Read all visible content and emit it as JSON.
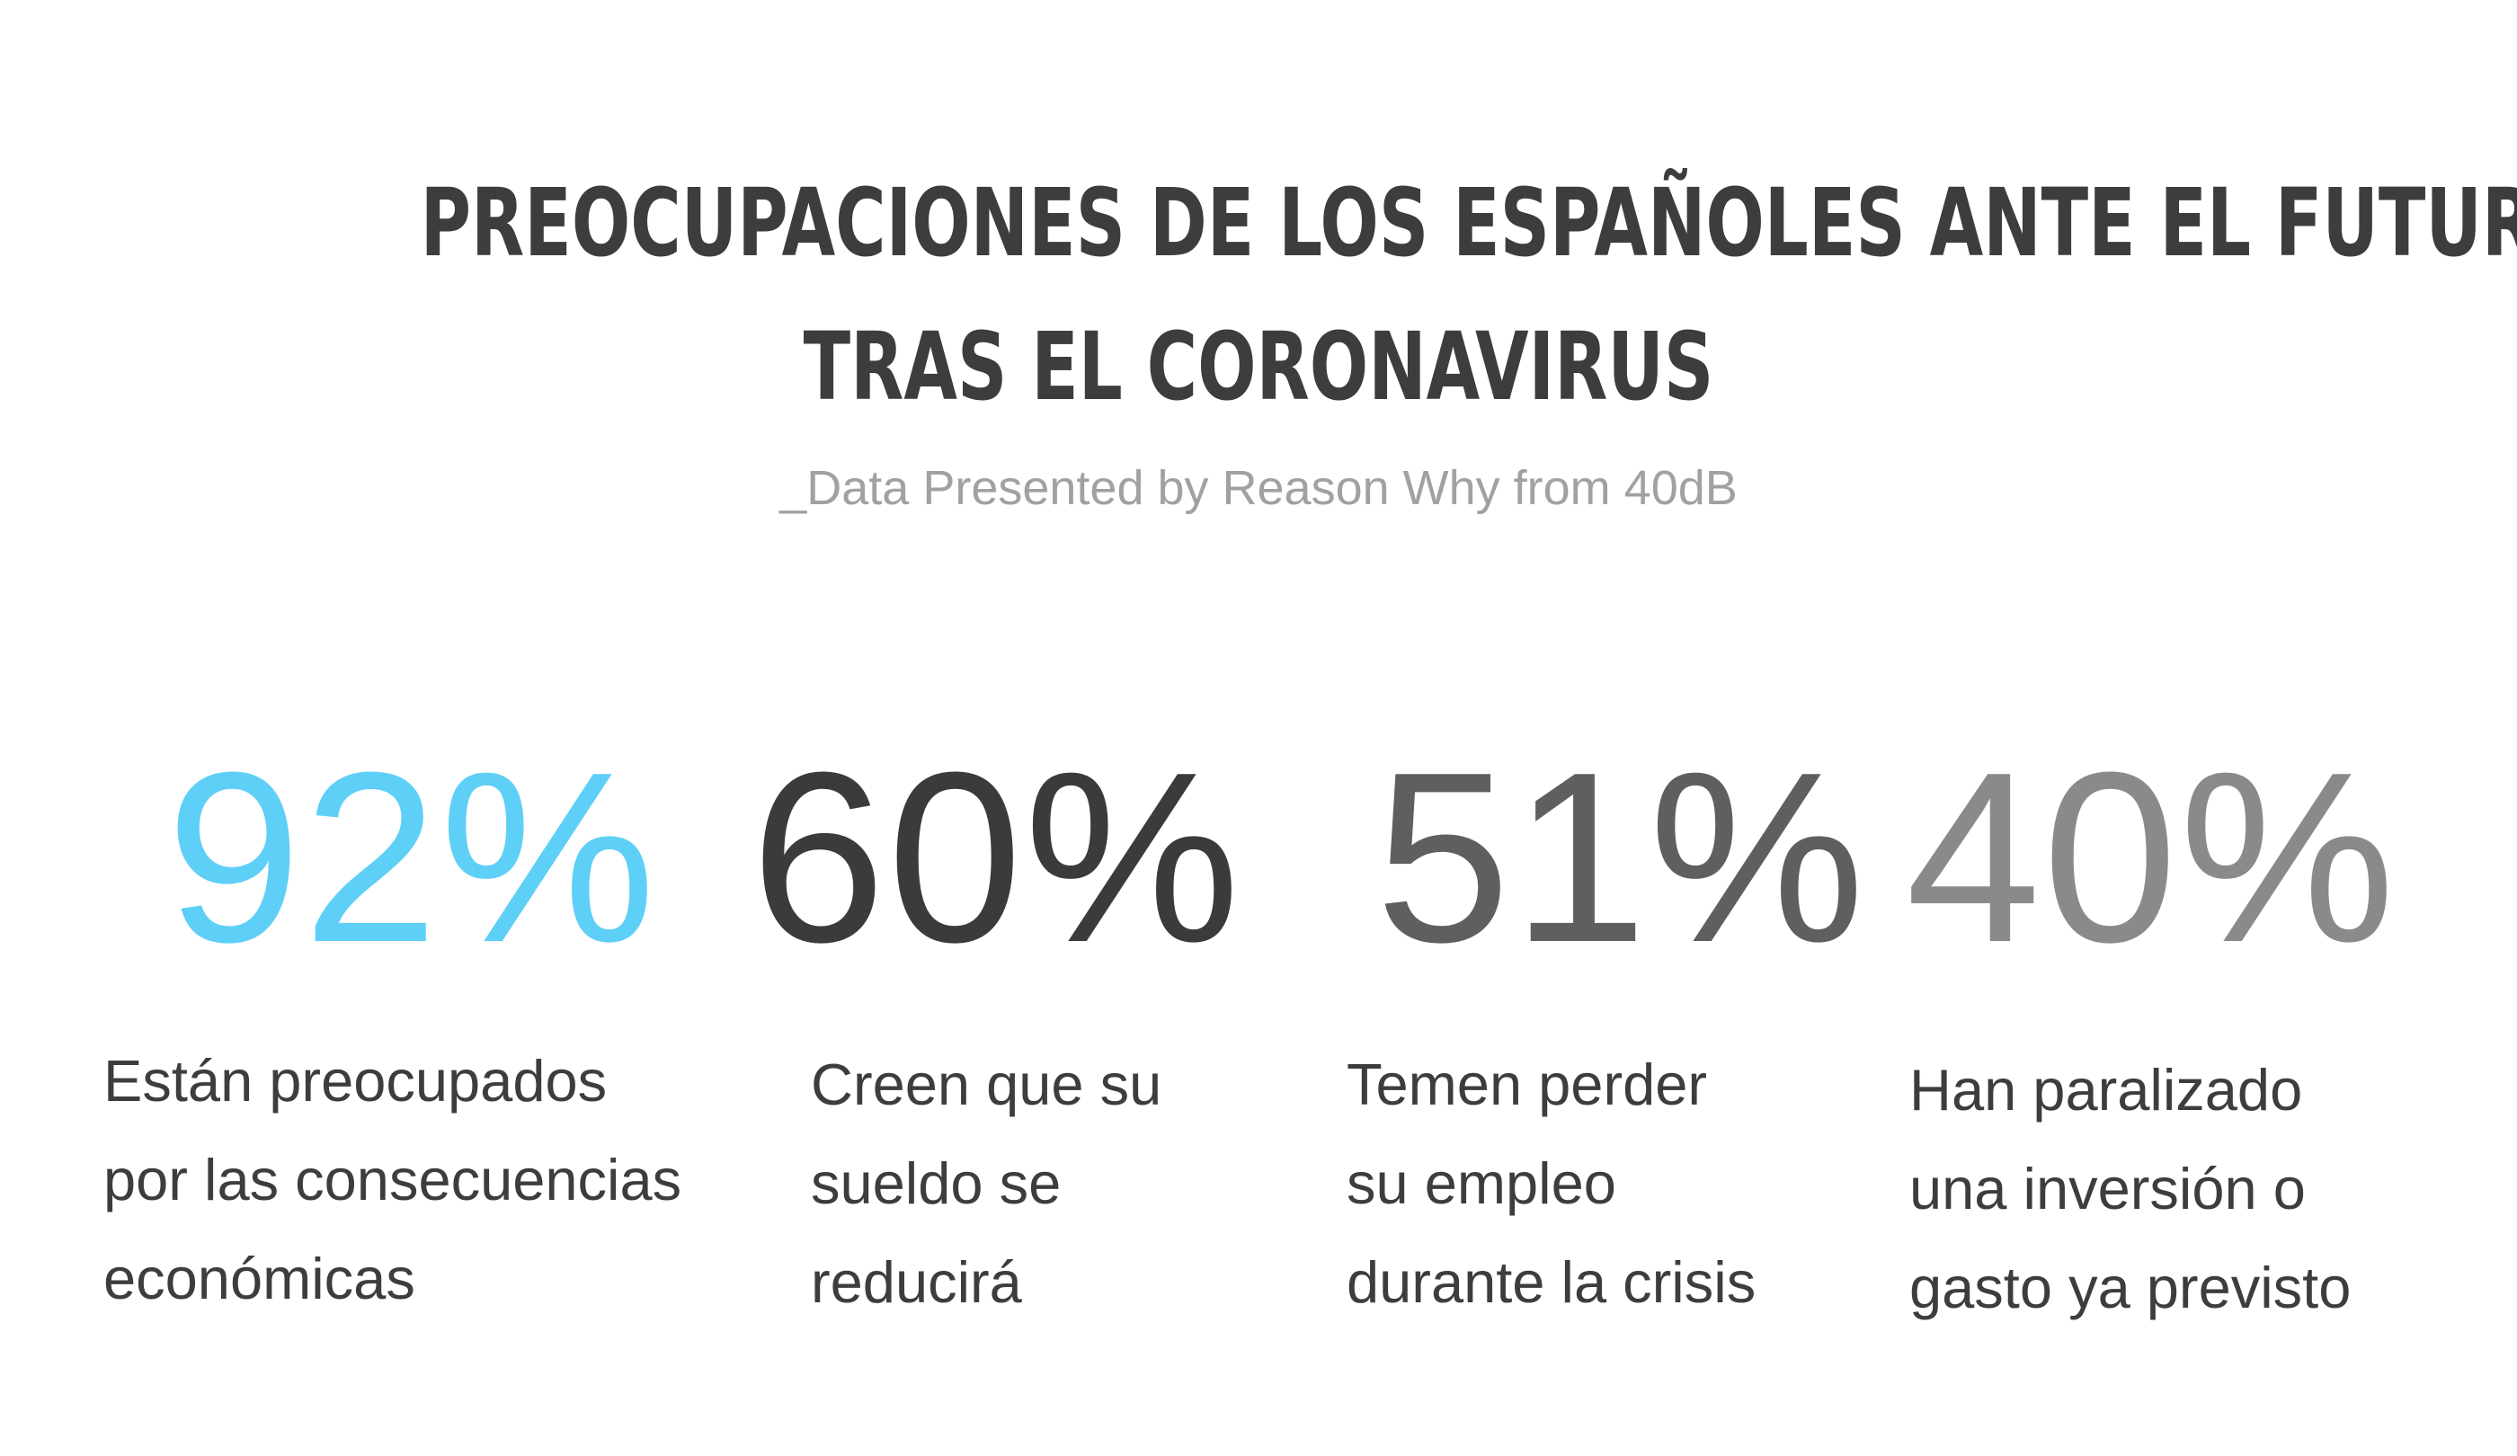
{
  "header": {
    "title_line1": "PREOCUPACIONES DE LOS ESPAÑOLES ANTE EL FUTURO",
    "title_line2": "TRAS EL CORONAVIRUS",
    "subtitle": "_Data Presented by Reason Why from 40dB"
  },
  "colors": {
    "accent": "#5ecff7",
    "dark": "#3b3b3b",
    "medium": "#5f5f5f",
    "light": "#8a8a8a",
    "text": "#3d3d3d",
    "subtitle": "#a1a1a1"
  },
  "stats": [
    {
      "value": "92%",
      "lines": [
        "Están preocupados",
        "por las consecuencias",
        "económicas"
      ]
    },
    {
      "value": "60%",
      "lines": [
        "Creen que su",
        "sueldo se",
        "reducirá"
      ]
    },
    {
      "value": "51%",
      "lines": [
        "Temen perder",
        "su empleo",
        "durante la crisis"
      ]
    },
    {
      "value": "40%",
      "lines": [
        "Han paralizado",
        "una inversión o",
        "gasto ya previsto"
      ]
    }
  ]
}
